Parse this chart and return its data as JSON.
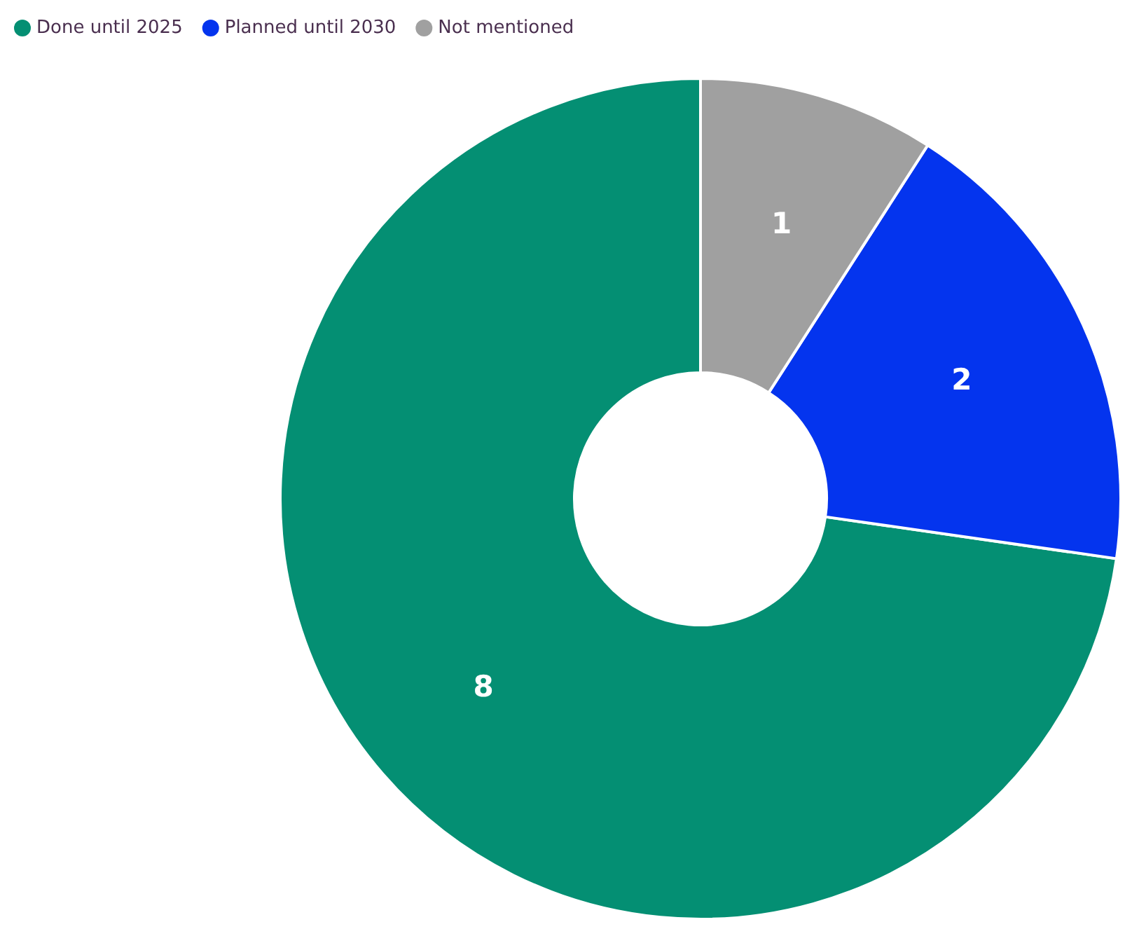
{
  "chart_data": {
    "type": "donut",
    "categories": [
      "Done until 2025",
      "Planned until 2030",
      "Not mentioned"
    ],
    "values": [
      8,
      2,
      1
    ],
    "colors": [
      "#048f73",
      "#0434ee",
      "#a0a0a0"
    ],
    "data_labels": true,
    "legend": "top left"
  }
}
